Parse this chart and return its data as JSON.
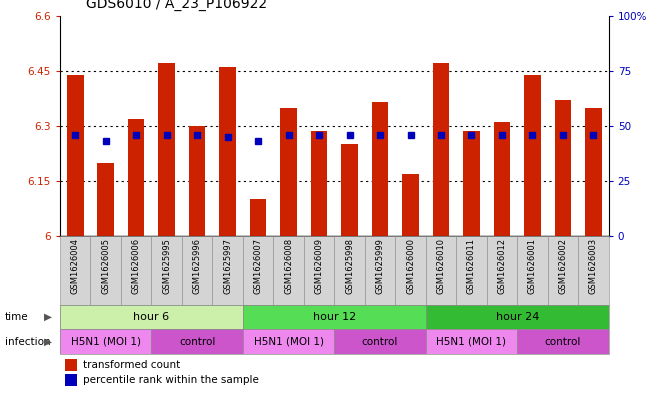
{
  "title": "GDS6010 / A_23_P106922",
  "samples": [
    "GSM1626004",
    "GSM1626005",
    "GSM1626006",
    "GSM1625995",
    "GSM1625996",
    "GSM1625997",
    "GSM1626007",
    "GSM1626008",
    "GSM1626009",
    "GSM1625998",
    "GSM1625999",
    "GSM1626000",
    "GSM1626010",
    "GSM1626011",
    "GSM1626012",
    "GSM1626001",
    "GSM1626002",
    "GSM1626003"
  ],
  "bar_values": [
    6.44,
    6.2,
    6.32,
    6.47,
    6.3,
    6.46,
    6.1,
    6.35,
    6.285,
    6.25,
    6.365,
    6.17,
    6.47,
    6.285,
    6.31,
    6.44,
    6.37,
    6.35
  ],
  "percentile_values": [
    46,
    43,
    46,
    46,
    46,
    45,
    43,
    46,
    46,
    46,
    46,
    46,
    46,
    46,
    46,
    46,
    46,
    46
  ],
  "ymin": 6.0,
  "ymax": 6.6,
  "yticks": [
    6.0,
    6.15,
    6.3,
    6.45,
    6.6
  ],
  "ytick_labels": [
    "6",
    "6.15",
    "6.3",
    "6.45",
    "6.6"
  ],
  "right_yticks": [
    0,
    25,
    50,
    75,
    100
  ],
  "right_ytick_labels": [
    "0",
    "25",
    "50",
    "75",
    "100%"
  ],
  "bar_color": "#cc2200",
  "blue_color": "#0000bb",
  "bar_width": 0.55,
  "time_groups": [
    {
      "label": "hour 6",
      "start": 0,
      "end": 6,
      "color": "#ccf0aa"
    },
    {
      "label": "hour 12",
      "start": 6,
      "end": 12,
      "color": "#55dd55"
    },
    {
      "label": "hour 24",
      "start": 12,
      "end": 18,
      "color": "#33bb33"
    }
  ],
  "infection_groups": [
    {
      "label": "H5N1 (MOI 1)",
      "start": 0,
      "end": 3,
      "color": "#ee88ee"
    },
    {
      "label": "control",
      "start": 3,
      "end": 6,
      "color": "#cc55cc"
    },
    {
      "label": "H5N1 (MOI 1)",
      "start": 6,
      "end": 9,
      "color": "#ee88ee"
    },
    {
      "label": "control",
      "start": 9,
      "end": 12,
      "color": "#cc55cc"
    },
    {
      "label": "H5N1 (MOI 1)",
      "start": 12,
      "end": 15,
      "color": "#ee88ee"
    },
    {
      "label": "control",
      "start": 15,
      "end": 18,
      "color": "#cc55cc"
    }
  ],
  "legend_items": [
    {
      "label": "transformed count",
      "color": "#cc2200"
    },
    {
      "label": "percentile rank within the sample",
      "color": "#0000bb"
    }
  ],
  "ylabel_left_color": "#cc2200",
  "ylabel_right_color": "#0000bb",
  "sample_bg_color": "#d4d4d4",
  "tick_label_fontsize": 7.5,
  "bar_label_fontsize": 6.0,
  "row_label_fontsize": 7.5,
  "row_content_fontsize": 8.0,
  "title_fontsize": 10
}
